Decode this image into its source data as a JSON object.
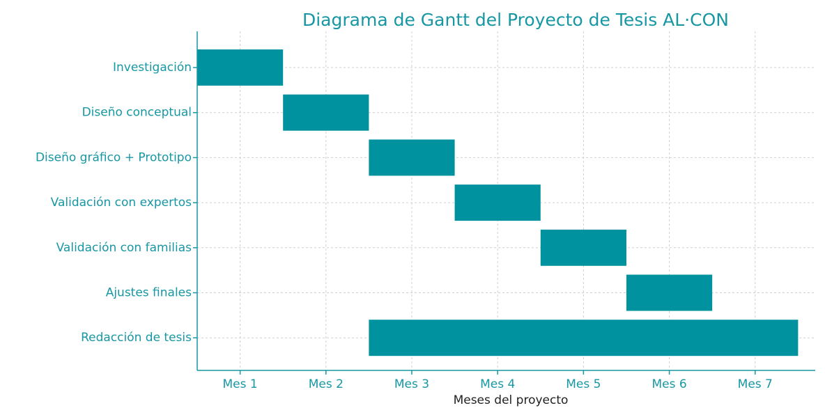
{
  "chart_data": {
    "type": "gantt",
    "title": "Diagrama de Gantt del Proyecto de Tesis AL·CON",
    "x_label": "Meses del proyecto",
    "categories": [
      "Investigación",
      "Diseño conceptual",
      "Diseño gráfico + Prototipo",
      "Validación con expertos",
      "Validación con familias",
      "Ajustes finales",
      "Redacción de tesis"
    ],
    "start": [
      0.5,
      1.5,
      2.5,
      3.5,
      4.5,
      5.5,
      2.5
    ],
    "end": [
      1.5,
      2.5,
      3.5,
      4.5,
      5.5,
      6.5,
      7.5
    ],
    "color": "#00929e",
    "xlim": [
      0.5,
      7.7
    ],
    "xticks": [
      {
        "value": 1,
        "label": "Mes 1"
      },
      {
        "value": 2,
        "label": "Mes 2"
      },
      {
        "value": 3,
        "label": "Mes 3"
      },
      {
        "value": 4,
        "label": "Mes 4"
      },
      {
        "value": 5,
        "label": "Mes 5"
      },
      {
        "value": 6,
        "label": "Mes 6"
      },
      {
        "value": 7,
        "label": "Mes 7"
      }
    ],
    "grid": true
  }
}
